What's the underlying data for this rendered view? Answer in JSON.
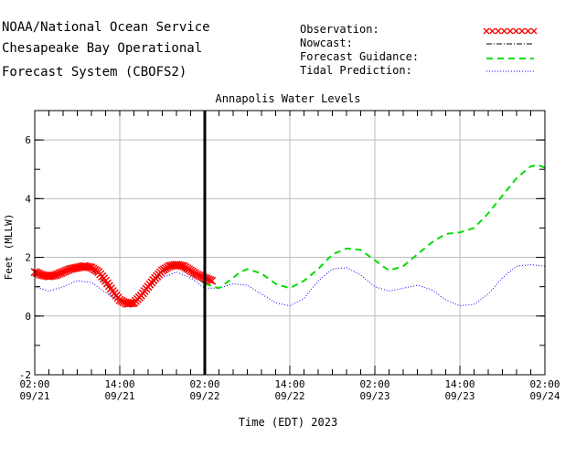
{
  "header": {
    "line1": "NOAA/National Ocean Service",
    "line2": "Chesapeake Bay Operational",
    "line3": "Forecast System (CBOFS2)"
  },
  "legend": [
    {
      "label": "Observation:",
      "color": "#ff0000",
      "style": "x-markers"
    },
    {
      "label": "Nowcast:",
      "color": "#000000",
      "style": "dash-dot"
    },
    {
      "label": "Forecast Guidance:",
      "color": "#00cc00",
      "style": "dashed"
    },
    {
      "label": "Tidal Prediction:",
      "color": "#0000ff",
      "style": "dotted"
    }
  ],
  "chart_data": {
    "type": "line",
    "title": "Annapolis Water Levels",
    "xlabel": "Time (EDT) 2023",
    "ylabel": "Feet (MLLW)",
    "xlim": [
      "2023-09-21T02:00",
      "2023-09-24T02:00"
    ],
    "ylim": [
      -2,
      7
    ],
    "grid": true,
    "legend_position": "top-right",
    "now": "2023-09-22T02:00",
    "x_ticks": [
      {
        "t": "2023-09-21T02:00",
        "time": "02:00",
        "date": "09/21"
      },
      {
        "t": "2023-09-21T14:00",
        "time": "14:00",
        "date": "09/21"
      },
      {
        "t": "2023-09-22T02:00",
        "time": "02:00",
        "date": "09/22"
      },
      {
        "t": "2023-09-22T14:00",
        "time": "14:00",
        "date": "09/22"
      },
      {
        "t": "2023-09-23T02:00",
        "time": "02:00",
        "date": "09/23"
      },
      {
        "t": "2023-09-23T14:00",
        "time": "14:00",
        "date": "09/23"
      },
      {
        "t": "2023-09-24T02:00",
        "time": "02:00",
        "date": "09/24"
      }
    ],
    "y_ticks": [
      -2,
      0,
      2,
      4,
      6
    ],
    "series": [
      {
        "name": "Observation",
        "x": [
          "2023-09-21T02:00",
          "2023-09-21T03:00",
          "2023-09-21T04:00",
          "2023-09-21T05:00",
          "2023-09-21T06:00",
          "2023-09-21T07:00",
          "2023-09-21T08:00",
          "2023-09-21T09:00",
          "2023-09-21T10:00",
          "2023-09-21T11:00",
          "2023-09-21T12:00",
          "2023-09-21T13:00",
          "2023-09-21T14:00",
          "2023-09-21T15:00",
          "2023-09-21T16:00",
          "2023-09-21T17:00",
          "2023-09-21T18:00",
          "2023-09-21T19:00",
          "2023-09-21T20:00",
          "2023-09-21T21:00",
          "2023-09-21T22:00",
          "2023-09-21T23:00",
          "2023-09-22T00:00",
          "2023-09-22T01:00",
          "2023-09-22T02:00",
          "2023-09-22T03:00"
        ],
        "values": [
          1.5,
          1.4,
          1.35,
          1.4,
          1.5,
          1.6,
          1.65,
          1.7,
          1.65,
          1.5,
          1.2,
          0.85,
          0.55,
          0.42,
          0.45,
          0.7,
          1.0,
          1.3,
          1.55,
          1.7,
          1.75,
          1.7,
          1.55,
          1.4,
          1.3,
          1.2
        ]
      },
      {
        "name": "Nowcast",
        "x": [
          "2023-09-21T02:00",
          "2023-09-21T04:00",
          "2023-09-21T06:00",
          "2023-09-21T08:00",
          "2023-09-21T10:00",
          "2023-09-21T12:00",
          "2023-09-21T13:00",
          "2023-09-21T14:00",
          "2023-09-21T15:00",
          "2023-09-21T16:00",
          "2023-09-21T18:00",
          "2023-09-21T20:00",
          "2023-09-21T22:00",
          "2023-09-22T00:00",
          "2023-09-22T02:00"
        ],
        "values": [
          1.4,
          1.3,
          1.45,
          1.6,
          1.6,
          1.1,
          0.8,
          0.5,
          0.38,
          0.4,
          0.95,
          1.5,
          1.7,
          1.45,
          1.1
        ]
      },
      {
        "name": "Forecast Guidance",
        "x": [
          "2023-09-22T02:00",
          "2023-09-22T04:00",
          "2023-09-22T06:00",
          "2023-09-22T07:00",
          "2023-09-22T08:00",
          "2023-09-22T10:00",
          "2023-09-22T12:00",
          "2023-09-22T14:00",
          "2023-09-22T16:00",
          "2023-09-22T18:00",
          "2023-09-22T20:00",
          "2023-09-22T22:00",
          "2023-09-23T00:00",
          "2023-09-23T02:00",
          "2023-09-23T04:00",
          "2023-09-23T06:00",
          "2023-09-23T08:00",
          "2023-09-23T10:00",
          "2023-09-23T12:00",
          "2023-09-23T14:00",
          "2023-09-23T16:00",
          "2023-09-23T18:00",
          "2023-09-23T20:00",
          "2023-09-23T22:00",
          "2023-09-24T00:00",
          "2023-09-24T01:00",
          "2023-09-24T02:00"
        ],
        "values": [
          1.1,
          0.95,
          1.3,
          1.5,
          1.6,
          1.45,
          1.1,
          0.95,
          1.2,
          1.6,
          2.1,
          2.3,
          2.25,
          1.9,
          1.55,
          1.7,
          2.1,
          2.5,
          2.8,
          2.85,
          3.0,
          3.5,
          4.1,
          4.7,
          5.1,
          5.15,
          5.05
        ]
      },
      {
        "name": "Tidal Prediction",
        "x": [
          "2023-09-21T02:00",
          "2023-09-21T04:00",
          "2023-09-21T06:00",
          "2023-09-21T08:00",
          "2023-09-21T10:00",
          "2023-09-21T12:00",
          "2023-09-21T14:00",
          "2023-09-21T15:00",
          "2023-09-21T16:00",
          "2023-09-21T18:00",
          "2023-09-21T20:00",
          "2023-09-21T22:00",
          "2023-09-22T00:00",
          "2023-09-22T02:00",
          "2023-09-22T04:00",
          "2023-09-22T06:00",
          "2023-09-22T08:00",
          "2023-09-22T10:00",
          "2023-09-22T12:00",
          "2023-09-22T14:00",
          "2023-09-22T16:00",
          "2023-09-22T18:00",
          "2023-09-22T20:00",
          "2023-09-22T22:00",
          "2023-09-23T00:00",
          "2023-09-23T02:00",
          "2023-09-23T04:00",
          "2023-09-23T06:00",
          "2023-09-23T08:00",
          "2023-09-23T10:00",
          "2023-09-23T12:00",
          "2023-09-23T14:00",
          "2023-09-23T16:00",
          "2023-09-23T18:00",
          "2023-09-23T20:00",
          "2023-09-23T22:00",
          "2023-09-24T00:00",
          "2023-09-24T02:00"
        ],
        "values": [
          1.0,
          0.85,
          1.0,
          1.2,
          1.15,
          0.8,
          0.5,
          0.4,
          0.45,
          0.85,
          1.3,
          1.5,
          1.3,
          0.95,
          0.95,
          1.1,
          1.05,
          0.75,
          0.45,
          0.35,
          0.6,
          1.2,
          1.6,
          1.65,
          1.4,
          1.0,
          0.85,
          0.95,
          1.05,
          0.9,
          0.55,
          0.35,
          0.4,
          0.75,
          1.3,
          1.7,
          1.75,
          1.7
        ]
      }
    ]
  }
}
